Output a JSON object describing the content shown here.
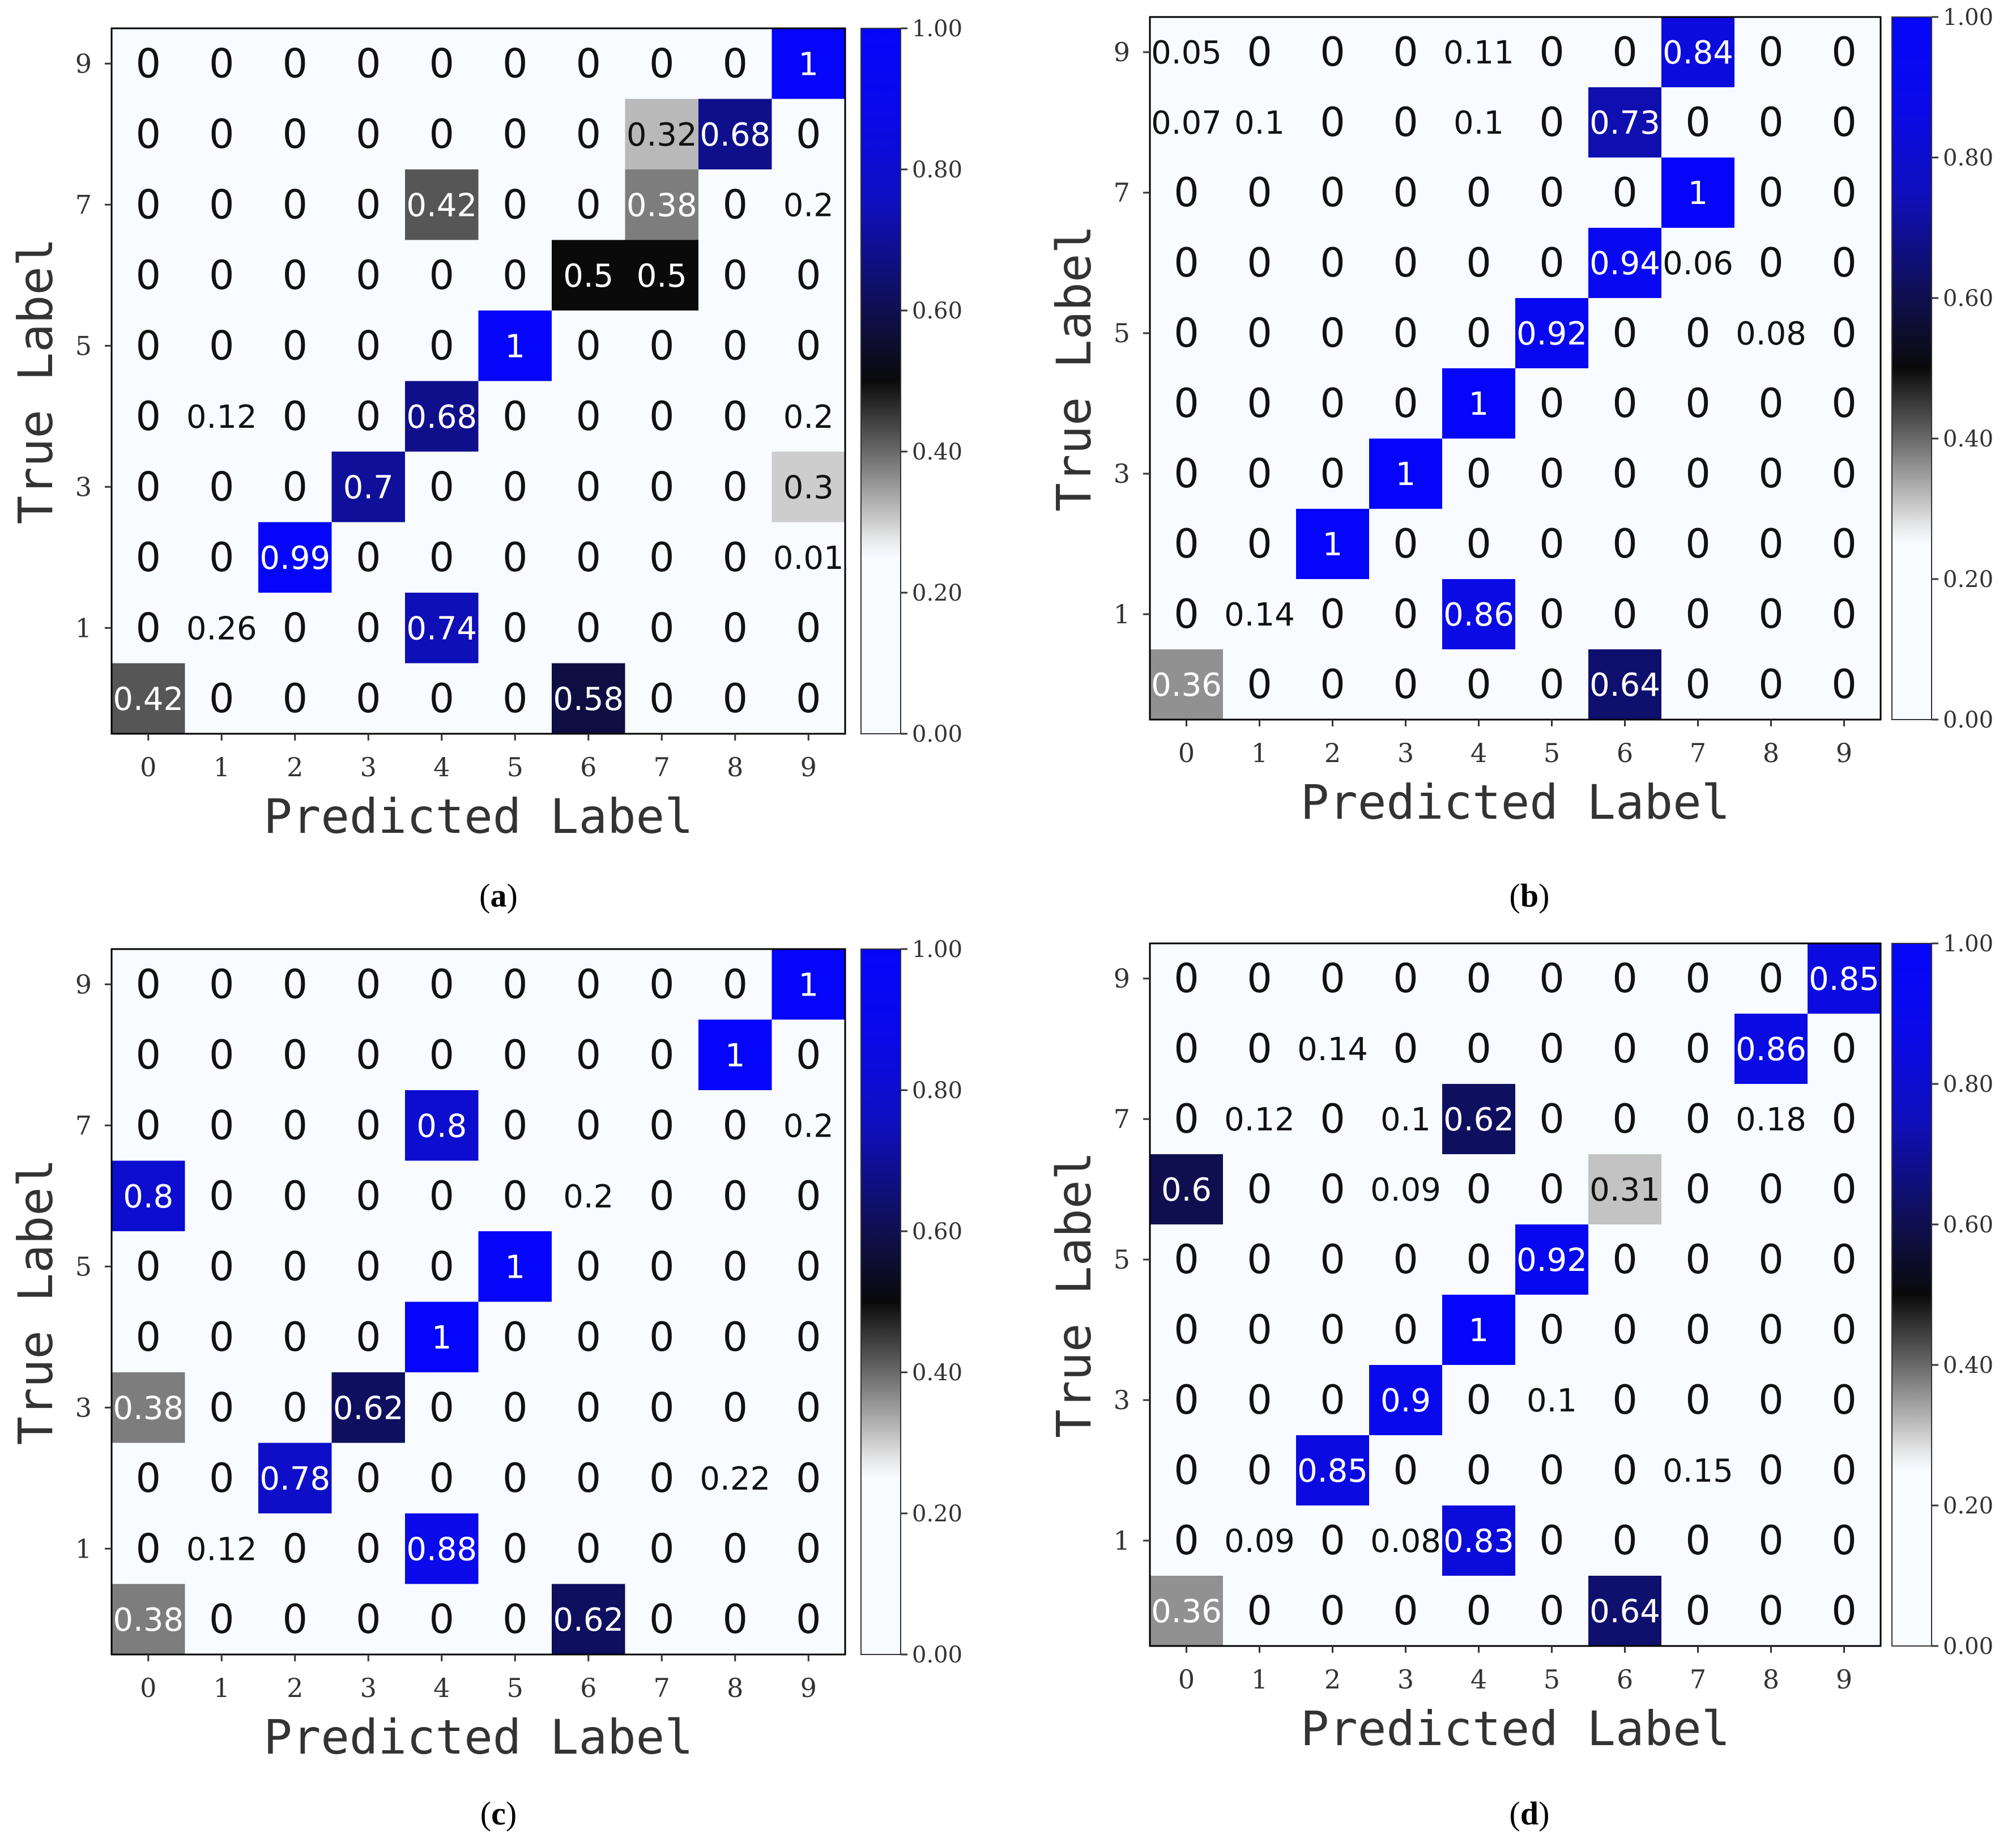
{
  "chart_data": [
    {
      "type": "heatmap",
      "caption": "a",
      "xlabel": "Predicted Label",
      "ylabel": "True Label",
      "x_ticks": [
        "0",
        "1",
        "2",
        "3",
        "4",
        "5",
        "6",
        "7",
        "8",
        "9"
      ],
      "y_ticks": [
        "1",
        "3",
        "5",
        "7",
        "9"
      ],
      "colorbar_ticks": [
        "0.00",
        "0.20",
        "0.40",
        "0.60",
        "0.80",
        "1.00"
      ],
      "value_range": [
        0,
        1
      ],
      "rows_top_to_bottom": [
        [
          "0",
          "0",
          "0",
          "0",
          "0",
          "0",
          "0",
          "0",
          "0",
          "1"
        ],
        [
          "0",
          "0",
          "0",
          "0",
          "0",
          "0",
          "0",
          "0.32",
          "0.68",
          "0"
        ],
        [
          "0",
          "0",
          "0",
          "0",
          "0.42",
          "0",
          "0",
          "0.38",
          "0",
          "0.2"
        ],
        [
          "0",
          "0",
          "0",
          "0",
          "0",
          "0",
          "0.5",
          "0.5",
          "0",
          "0"
        ],
        [
          "0",
          "0",
          "0",
          "0",
          "0",
          "1",
          "0",
          "0",
          "0",
          "0"
        ],
        [
          "0",
          "0.12",
          "0",
          "0",
          "0.68",
          "0",
          "0",
          "0",
          "0",
          "0.2"
        ],
        [
          "0",
          "0",
          "0",
          "0.7",
          "0",
          "0",
          "0",
          "0",
          "0",
          "0.3"
        ],
        [
          "0",
          "0",
          "0.99",
          "0",
          "0",
          "0",
          "0",
          "0",
          "0",
          "0.01"
        ],
        [
          "0",
          "0.26",
          "0",
          "0",
          "0.74",
          "0",
          "0",
          "0",
          "0",
          "0"
        ],
        [
          "0.42",
          "0",
          "0",
          "0",
          "0",
          "0",
          "0.58",
          "0",
          "0",
          "0"
        ]
      ]
    },
    {
      "type": "heatmap",
      "caption": "b",
      "xlabel": "Predicted Label",
      "ylabel": "True Label",
      "x_ticks": [
        "0",
        "1",
        "2",
        "3",
        "4",
        "5",
        "6",
        "7",
        "8",
        "9"
      ],
      "y_ticks": [
        "1",
        "3",
        "5",
        "7",
        "9"
      ],
      "colorbar_ticks": [
        "0.00",
        "0.20",
        "0.40",
        "0.60",
        "0.80",
        "1.00"
      ],
      "value_range": [
        0,
        1
      ],
      "rows_top_to_bottom": [
        [
          "0.05",
          "0",
          "0",
          "0",
          "0.11",
          "0",
          "0",
          "0.84",
          "0",
          "0"
        ],
        [
          "0.07",
          "0.1",
          "0",
          "0",
          "0.1",
          "0",
          "0.73",
          "0",
          "0",
          "0"
        ],
        [
          "0",
          "0",
          "0",
          "0",
          "0",
          "0",
          "0",
          "1",
          "0",
          "0"
        ],
        [
          "0",
          "0",
          "0",
          "0",
          "0",
          "0",
          "0.94",
          "0.06",
          "0",
          "0"
        ],
        [
          "0",
          "0",
          "0",
          "0",
          "0",
          "0.92",
          "0",
          "0",
          "0.08",
          "0"
        ],
        [
          "0",
          "0",
          "0",
          "0",
          "1",
          "0",
          "0",
          "0",
          "0",
          "0"
        ],
        [
          "0",
          "0",
          "0",
          "1",
          "0",
          "0",
          "0",
          "0",
          "0",
          "0"
        ],
        [
          "0",
          "0",
          "1",
          "0",
          "0",
          "0",
          "0",
          "0",
          "0",
          "0"
        ],
        [
          "0",
          "0.14",
          "0",
          "0",
          "0.86",
          "0",
          "0",
          "0",
          "0",
          "0"
        ],
        [
          "0.36",
          "0",
          "0",
          "0",
          "0",
          "0",
          "0.64",
          "0",
          "0",
          "0"
        ]
      ]
    },
    {
      "type": "heatmap",
      "caption": "c",
      "xlabel": "Predicted Label",
      "ylabel": "True Label",
      "x_ticks": [
        "0",
        "1",
        "2",
        "3",
        "4",
        "5",
        "6",
        "7",
        "8",
        "9"
      ],
      "y_ticks": [
        "1",
        "3",
        "5",
        "7",
        "9"
      ],
      "colorbar_ticks": [
        "0.00",
        "0.20",
        "0.40",
        "0.60",
        "0.80",
        "1.00"
      ],
      "value_range": [
        0,
        1
      ],
      "rows_top_to_bottom": [
        [
          "0",
          "0",
          "0",
          "0",
          "0",
          "0",
          "0",
          "0",
          "0",
          "1"
        ],
        [
          "0",
          "0",
          "0",
          "0",
          "0",
          "0",
          "0",
          "0",
          "1",
          "0"
        ],
        [
          "0",
          "0",
          "0",
          "0",
          "0.8",
          "0",
          "0",
          "0",
          "0",
          "0.2"
        ],
        [
          "0.8",
          "0",
          "0",
          "0",
          "0",
          "0",
          "0.2",
          "0",
          "0",
          "0"
        ],
        [
          "0",
          "0",
          "0",
          "0",
          "0",
          "1",
          "0",
          "0",
          "0",
          "0"
        ],
        [
          "0",
          "0",
          "0",
          "0",
          "1",
          "0",
          "0",
          "0",
          "0",
          "0"
        ],
        [
          "0.38",
          "0",
          "0",
          "0.62",
          "0",
          "0",
          "0",
          "0",
          "0",
          "0"
        ],
        [
          "0",
          "0",
          "0.78",
          "0",
          "0",
          "0",
          "0",
          "0",
          "0.22",
          "0"
        ],
        [
          "0",
          "0.12",
          "0",
          "0",
          "0.88",
          "0",
          "0",
          "0",
          "0",
          "0"
        ],
        [
          "0.38",
          "0",
          "0",
          "0",
          "0",
          "0",
          "0.62",
          "0",
          "0",
          "0"
        ]
      ]
    },
    {
      "type": "heatmap",
      "caption": "d",
      "xlabel": "Predicted Label",
      "ylabel": "True Label",
      "x_ticks": [
        "0",
        "1",
        "2",
        "3",
        "4",
        "5",
        "6",
        "7",
        "8",
        "9"
      ],
      "y_ticks": [
        "1",
        "3",
        "5",
        "7",
        "9"
      ],
      "colorbar_ticks": [
        "0.00",
        "0.20",
        "0.40",
        "0.60",
        "0.80",
        "1.00"
      ],
      "value_range": [
        0,
        1
      ],
      "rows_top_to_bottom": [
        [
          "0",
          "0",
          "0",
          "0",
          "0",
          "0",
          "0",
          "0",
          "0",
          "0.85"
        ],
        [
          "0",
          "0",
          "0.14",
          "0",
          "0",
          "0",
          "0",
          "0",
          "0.86",
          "0"
        ],
        [
          "0",
          "0.12",
          "0",
          "0.1",
          "0.62",
          "0",
          "0",
          "0",
          "0.18",
          "0"
        ],
        [
          "0.6",
          "0",
          "0",
          "0.09",
          "0",
          "0",
          "0.31",
          "0",
          "0",
          "0"
        ],
        [
          "0",
          "0",
          "0",
          "0",
          "0",
          "0.92",
          "0",
          "0",
          "0",
          "0"
        ],
        [
          "0",
          "0",
          "0",
          "0",
          "1",
          "0",
          "0",
          "0",
          "0",
          "0"
        ],
        [
          "0",
          "0",
          "0",
          "0.9",
          "0",
          "0.1",
          "0",
          "0",
          "0",
          "0"
        ],
        [
          "0",
          "0",
          "0.85",
          "0",
          "0",
          "0",
          "0",
          "0.15",
          "0",
          "0"
        ],
        [
          "0",
          "0.09",
          "0",
          "0.08",
          "0.83",
          "0",
          "0",
          "0",
          "0",
          "0"
        ],
        [
          "0.36",
          "0",
          "0",
          "0",
          "0",
          "0",
          "0.64",
          "0",
          "0",
          "0"
        ]
      ]
    }
  ]
}
